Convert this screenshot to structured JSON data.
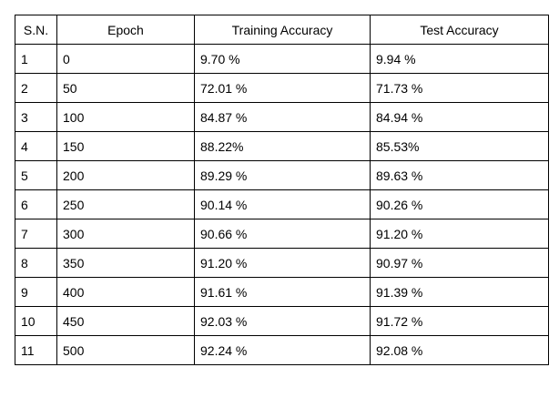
{
  "table": {
    "headers": [
      "S.N.",
      "Epoch",
      "Training Accuracy",
      "Test Accuracy"
    ],
    "rows": [
      [
        "1",
        "0",
        "9.70 %",
        "9.94 %"
      ],
      [
        "2",
        "50",
        "72.01 %",
        "71.73 %"
      ],
      [
        "3",
        "100",
        "84.87 %",
        "84.94 %"
      ],
      [
        "4",
        "150",
        "88.22%",
        "85.53%"
      ],
      [
        "5",
        "200",
        "89.29 %",
        "89.63 %"
      ],
      [
        "6",
        "250",
        "90.14 %",
        "90.26 %"
      ],
      [
        "7",
        "300",
        "90.66 %",
        "91.20 %"
      ],
      [
        "8",
        "350",
        "91.20 %",
        "90.97 %"
      ],
      [
        "9",
        "400",
        "91.61 %",
        "91.39 %"
      ],
      [
        "10",
        "450",
        "92.03 %",
        "91.72 %"
      ],
      [
        "11",
        "500",
        "92.24 %",
        "92.08 %"
      ]
    ]
  }
}
